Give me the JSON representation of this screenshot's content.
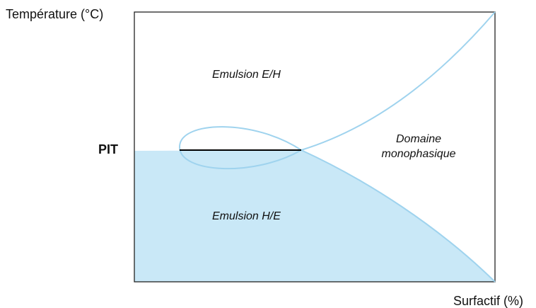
{
  "axes": {
    "y_title": "Température (°C)",
    "x_title": "Surfactif (%)",
    "pit_marker": "PIT"
  },
  "regions": {
    "water_in_oil": "Emulsion E/H",
    "oil_in_water": "Emulsion H/E",
    "single_phase_line1": "Domaine",
    "single_phase_line2": "monophasique"
  },
  "colors": {
    "curve": "#9fd3ee",
    "fill": "#c9e8f7",
    "pit_line": "#000000",
    "frame": "#222222"
  }
}
